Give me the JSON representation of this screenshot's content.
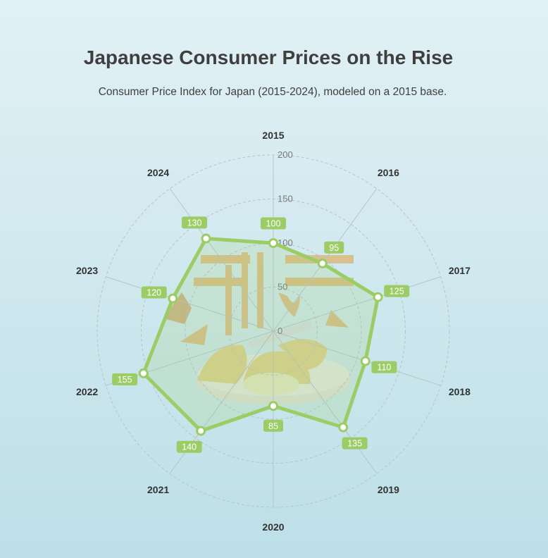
{
  "header": {
    "title": "Japanese Consumer Prices on the Rise",
    "subtitle": "Consumer Price Index for Japan (2015-2024), modeled on a 2015 base."
  },
  "colors": {
    "series": "#9ccc65",
    "fill": "rgba(156, 204, 101, 0.18)",
    "label_bg": "#9ccc65",
    "grid": "#b9c3c8",
    "axis_label": "#333333",
    "tick_label": "#7a7a7a"
  },
  "chart_data": {
    "type": "radar",
    "title": "Japanese Consumer Prices on the Rise",
    "subtitle": "Consumer Price Index for Japan (2015-2024), modeled on a 2015 base.",
    "categories": [
      "2015",
      "2016",
      "2017",
      "2018",
      "2019",
      "2020",
      "2021",
      "2022",
      "2023",
      "2024"
    ],
    "series": [
      {
        "values": [
          100,
          95,
          125,
          110,
          135,
          85,
          140,
          155,
          120,
          130
        ]
      }
    ],
    "rlim": [
      0,
      200
    ],
    "ticks": [
      0,
      50,
      100,
      150,
      200
    ],
    "tick_labels": [
      "0",
      "50",
      "100",
      "150",
      "200"
    ],
    "grid": true,
    "legend": "none"
  }
}
